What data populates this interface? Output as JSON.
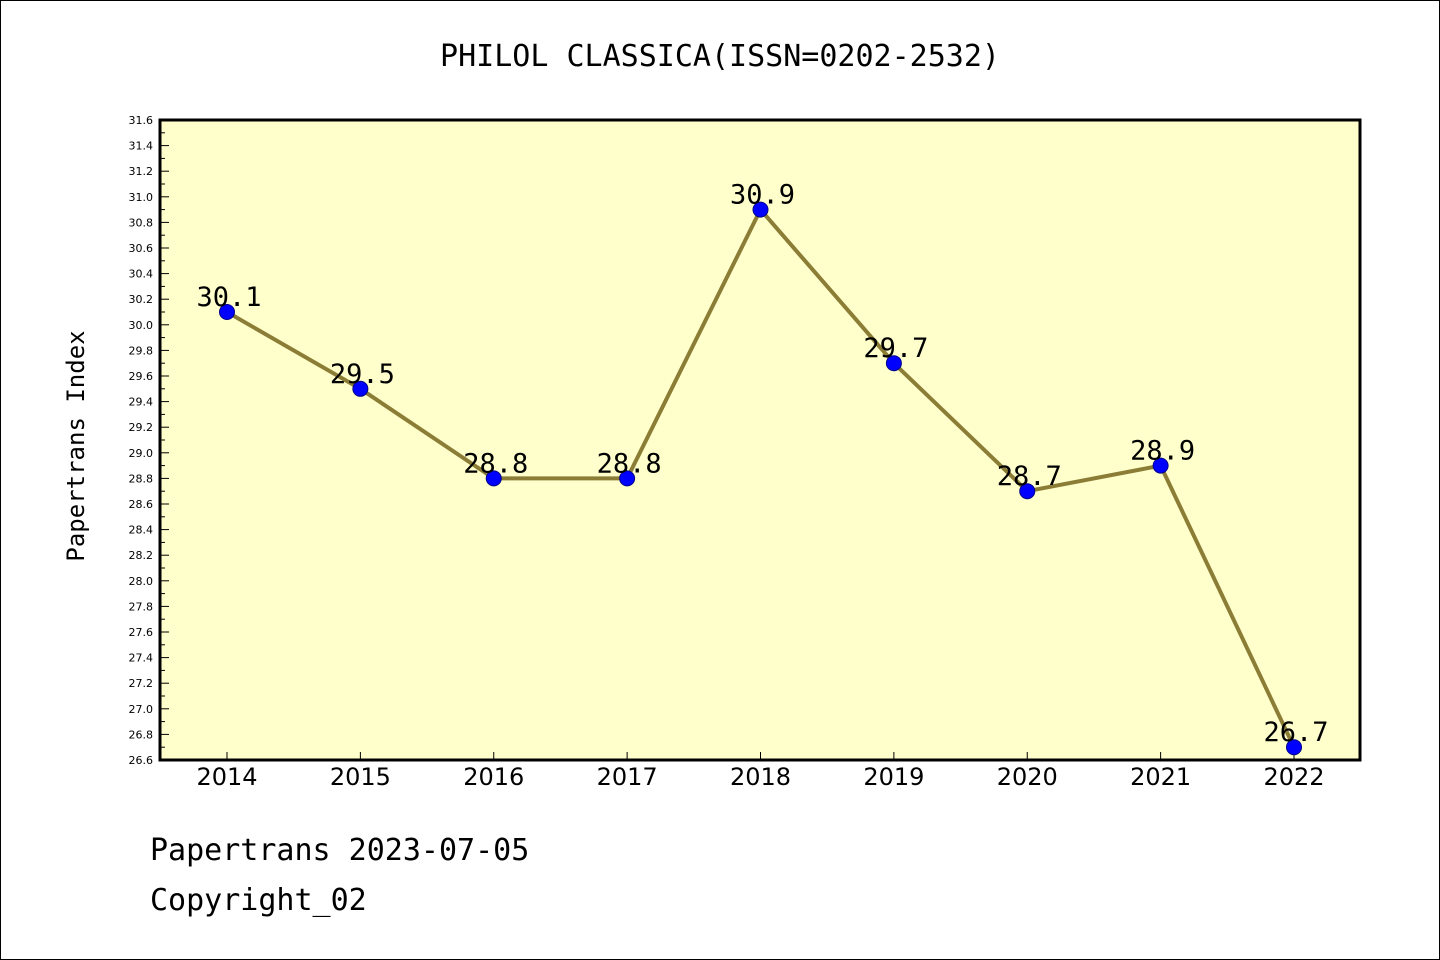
{
  "chart_data": {
    "type": "line",
    "title": "PHILOL CLASSICA(ISSN=0202-2532)",
    "xlabel": "",
    "ylabel": "Papertrans Index",
    "categories": [
      "2014",
      "2015",
      "2016",
      "2017",
      "2018",
      "2019",
      "2020",
      "2021",
      "2022"
    ],
    "series": [
      {
        "values": [
          30.1,
          29.5,
          28.8,
          28.8,
          30.9,
          29.7,
          28.7,
          28.9,
          26.7
        ],
        "data_labels": [
          "30.1",
          "29.5",
          "28.8",
          "28.8",
          "30.9",
          "29.7",
          "28.7",
          "28.9",
          "26.7"
        ]
      }
    ],
    "ylim": [
      26.6,
      31.6
    ],
    "yticks": [
      "26.6",
      "26.8",
      "27.0",
      "27.2",
      "27.4",
      "27.6",
      "27.8",
      "28.0",
      "28.2",
      "28.4",
      "28.6",
      "28.8",
      "29.0",
      "29.2",
      "29.4",
      "29.6",
      "29.8",
      "30.0",
      "30.2",
      "30.4",
      "30.6",
      "30.8",
      "31.0",
      "31.2",
      "31.4",
      "31.6"
    ],
    "grid": false,
    "colors": {
      "plot_background": "#ffffcc",
      "line": "#8b7d35",
      "marker": "#0000ff",
      "marker_edge": "#00008b"
    }
  },
  "footer": {
    "line1": "Papertrans 2023-07-05",
    "line2": "Copyright_02"
  }
}
